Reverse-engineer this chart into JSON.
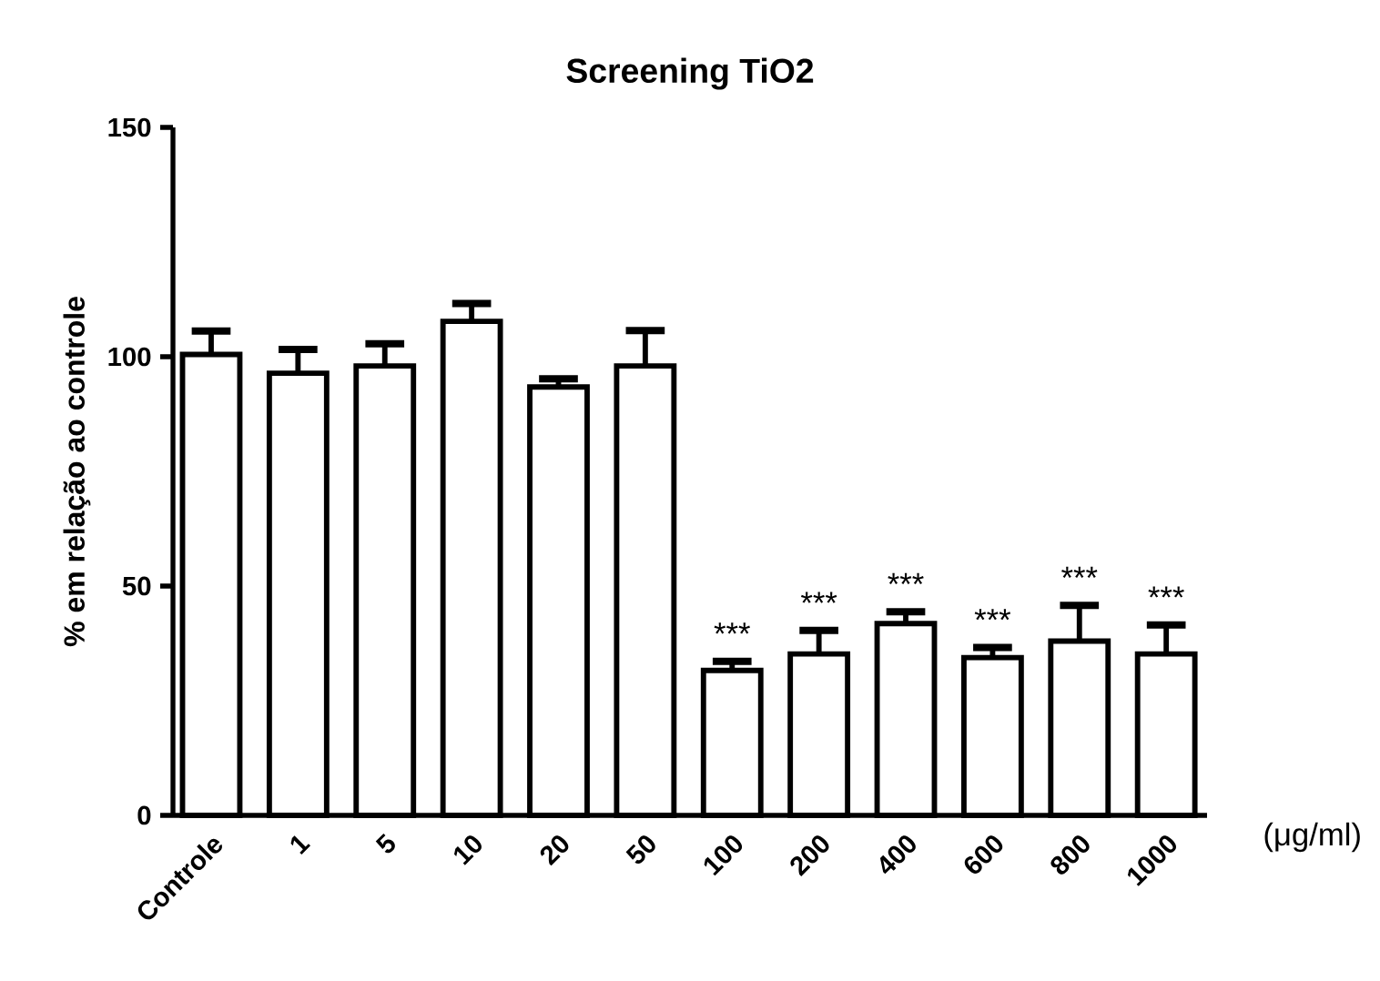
{
  "chart_data": {
    "type": "bar",
    "title": "Screening TiO2",
    "ylabel": "% em relação ao controle",
    "xlabel": "(μg/ml)",
    "categories": [
      "Controle",
      "1",
      "5",
      "10",
      "20",
      "50",
      "100",
      "200",
      "400",
      "600",
      "800",
      "1000"
    ],
    "values": [
      100.5,
      96.4,
      98,
      107.7,
      93.4,
      98,
      31.6,
      35.2,
      41.8,
      34.4,
      38,
      35.2
    ],
    "errors": [
      5.1,
      5.2,
      4.8,
      3.9,
      1.8,
      7.7,
      2,
      5.1,
      2.6,
      2.2,
      7.8,
      6.3
    ],
    "color": "#ffffff",
    "ylim": [
      0,
      150
    ],
    "yticks": [
      0,
      50,
      100,
      150
    ],
    "annotations": [
      {
        "text": "***",
        "x": "100",
        "y": 31.6
      },
      {
        "text": "***",
        "x": "200",
        "y": 35.2
      },
      {
        "text": "***",
        "x": "400",
        "y": 41.8
      },
      {
        "text": "***",
        "x": "600",
        "y": 34.4
      },
      {
        "text": "***",
        "x": "800",
        "y": 38
      },
      {
        "text": "***",
        "x": "1000",
        "y": 35.2
      }
    ]
  }
}
